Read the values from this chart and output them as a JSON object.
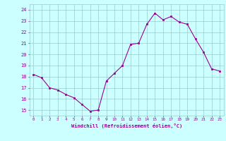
{
  "x": [
    0,
    1,
    2,
    3,
    4,
    5,
    6,
    7,
    8,
    9,
    10,
    11,
    12,
    13,
    14,
    15,
    16,
    17,
    18,
    19,
    20,
    21,
    22,
    23
  ],
  "y": [
    18.2,
    17.9,
    17.0,
    16.8,
    16.4,
    16.1,
    15.5,
    14.9,
    15.0,
    17.6,
    18.3,
    19.0,
    20.9,
    21.0,
    22.7,
    23.7,
    23.1,
    23.4,
    22.9,
    22.7,
    21.4,
    20.2,
    18.7,
    18.5
  ],
  "line_color": "#990099",
  "marker_color": "#990099",
  "bg_color": "#ccffff",
  "grid_color": "#99cccc",
  "xlabel": "Windchill (Refroidissement éolien,°C)",
  "xlabel_color": "#990099",
  "xtick_color": "#990099",
  "ytick_color": "#990099",
  "ylim": [
    14.5,
    24.5
  ],
  "xlim": [
    -0.5,
    23.5
  ],
  "yticks": [
    15,
    16,
    17,
    18,
    19,
    20,
    21,
    22,
    23,
    24
  ],
  "xticks": [
    0,
    1,
    2,
    3,
    4,
    5,
    6,
    7,
    8,
    9,
    10,
    11,
    12,
    13,
    14,
    15,
    16,
    17,
    18,
    19,
    20,
    21,
    22,
    23
  ]
}
